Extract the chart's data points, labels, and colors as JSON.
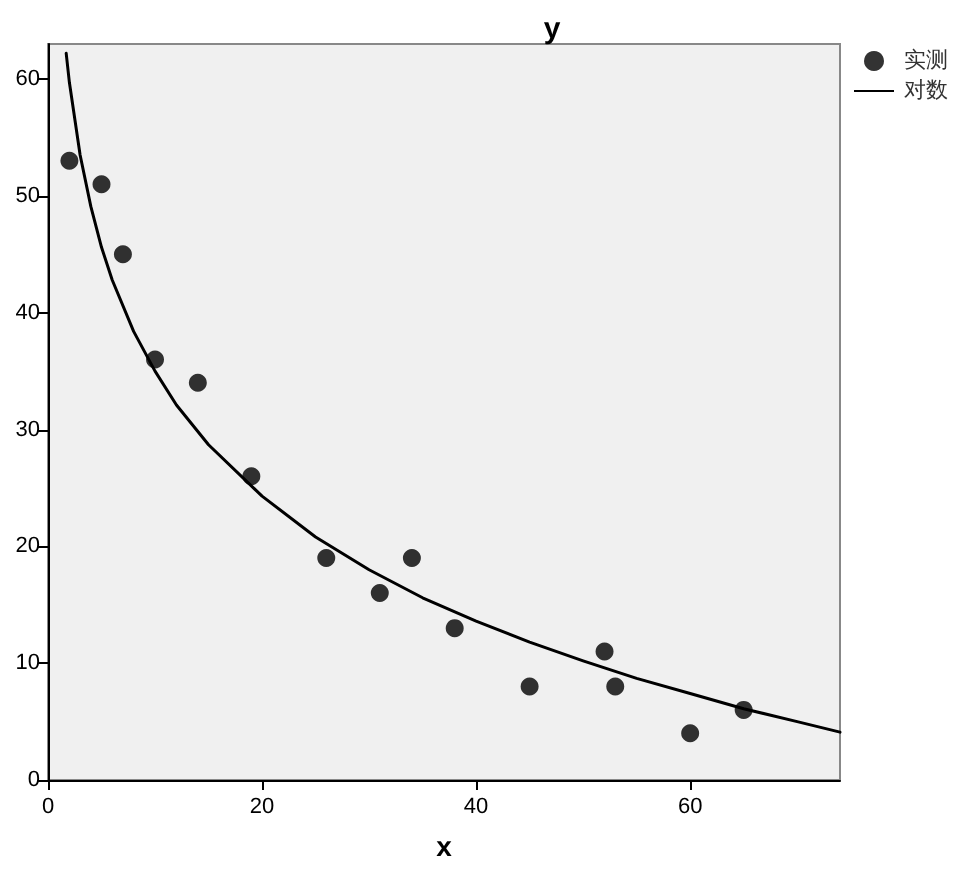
{
  "chart_data": {
    "type": "scatter",
    "ylabel": "y",
    "xlabel": "x",
    "xlim": [
      0,
      74
    ],
    "xticks": [
      0,
      20,
      40,
      60
    ],
    "ylim": [
      0,
      63
    ],
    "yticks": [
      0,
      10,
      20,
      30,
      40,
      50,
      60
    ],
    "grid": false,
    "legend": "top right",
    "series": [
      {
        "name": "实测",
        "marker": "circle",
        "color": "#000000",
        "x": [
          2,
          5,
          7,
          10,
          14,
          19,
          26,
          31,
          34,
          38,
          45,
          52,
          53,
          60,
          65
        ],
        "values": [
          53,
          51,
          45,
          36,
          34,
          26,
          19,
          16,
          19,
          13,
          8,
          11,
          8,
          4,
          6
        ]
      },
      {
        "name": "对数",
        "type": "line",
        "marker": "none",
        "line_style": "solid",
        "color": "#000000",
        "x": [
          1.7,
          2,
          3,
          4,
          5,
          6,
          8,
          10,
          12,
          15,
          20,
          25,
          30,
          35,
          40,
          45,
          50,
          55,
          60,
          65,
          70,
          74
        ],
        "values": [
          62.2,
          59.7,
          53.5,
          49.1,
          45.6,
          42.8,
          38.4,
          35,
          32.1,
          28.7,
          24.3,
          20.8,
          18,
          15.6,
          13.6,
          11.8,
          10.2,
          8.7,
          7.4,
          6.1,
          5,
          4.1
        ]
      }
    ]
  }
}
